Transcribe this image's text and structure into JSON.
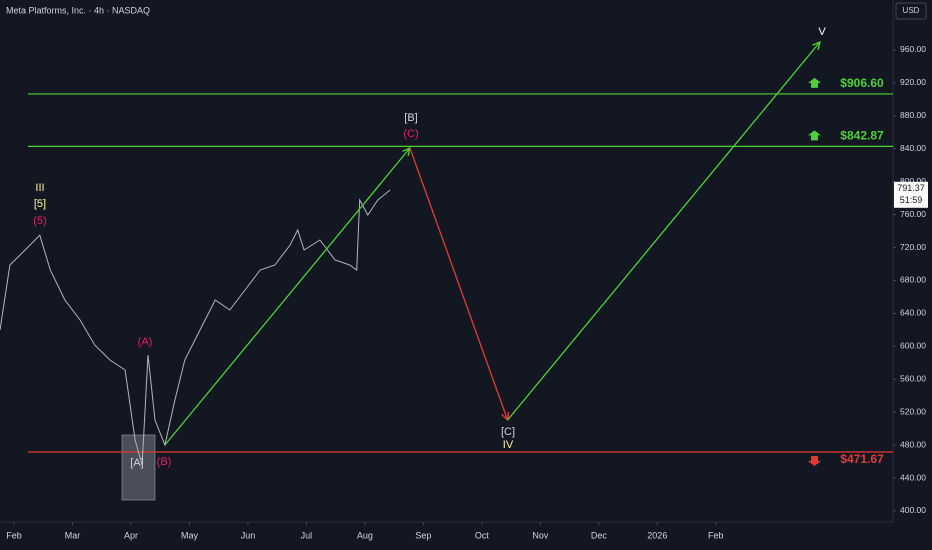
{
  "chart_data": {
    "type": "line",
    "title": "Meta Platforms, Inc. · 4h · NASDAQ",
    "currency": "USD",
    "xlim": [
      1.76,
      17.03
    ],
    "ylim": [
      386.6,
      1020.7
    ],
    "xticks": [
      {
        "value": 2,
        "label": "Feb"
      },
      {
        "value": 3,
        "label": "Mar"
      },
      {
        "value": 4,
        "label": "Apr"
      },
      {
        "value": 5,
        "label": "May"
      },
      {
        "value": 6,
        "label": "Jun"
      },
      {
        "value": 7,
        "label": "Jul"
      },
      {
        "value": 8,
        "label": "Aug"
      },
      {
        "value": 9,
        "label": "Sep"
      },
      {
        "value": 10,
        "label": "Oct"
      },
      {
        "value": 11,
        "label": "Nov"
      },
      {
        "value": 12,
        "label": "Dec"
      },
      {
        "value": 13,
        "label": "2026"
      },
      {
        "value": 14,
        "label": "Feb"
      }
    ],
    "yticks": [
      {
        "value": 400,
        "label": "400.00"
      },
      {
        "value": 440,
        "label": "440.00"
      },
      {
        "value": 480,
        "label": "480.00"
      },
      {
        "value": 520,
        "label": "520.00"
      },
      {
        "value": 560,
        "label": "560.00"
      },
      {
        "value": 600,
        "label": "600.00"
      },
      {
        "value": 640,
        "label": "640.00"
      },
      {
        "value": 680,
        "label": "680.00"
      },
      {
        "value": 720,
        "label": "720.00"
      },
      {
        "value": 760,
        "label": "760.00"
      },
      {
        "value": 800,
        "label": "800.00"
      },
      {
        "value": 840,
        "label": "840.00"
      },
      {
        "value": 880,
        "label": "880.00"
      },
      {
        "value": 920,
        "label": "920.00"
      },
      {
        "value": 960,
        "label": "960.00"
      }
    ],
    "series": [
      {
        "color": "#b2b5be",
        "arrow": false,
        "x": [
          1.76,
          1.93,
          2.19,
          2.44,
          2.62,
          2.87,
          3.13,
          3.38,
          3.64,
          3.9,
          4.07,
          4.19,
          4.29,
          4.41,
          4.58,
          4.75,
          4.92,
          5.18,
          5.44,
          5.69,
          5.95,
          6.21,
          6.46,
          6.72,
          6.85,
          6.96,
          7.23,
          7.49,
          7.74,
          7.86,
          7.91,
          8.05,
          8.22,
          8.43
        ],
        "values": [
          619.8,
          698.8,
          717,
          735,
          692.7,
          656.3,
          632,
          601.6,
          583.4,
          571.2,
          486.2,
          455.8,
          589.4,
          510.5,
          480.1,
          534.8,
          583.4,
          619.8,
          656.3,
          644.1,
          668.4,
          692.7,
          698.8,
          723.1,
          741.3,
          717,
          729.2,
          704.9,
          698.8,
          692.7,
          777.7,
          759.5,
          777.7,
          789.9
        ]
      },
      {
        "color": "#4cd137",
        "arrow": true,
        "x": [
          4.58,
          8.77
        ],
        "values": [
          480.1,
          840.9
        ]
      },
      {
        "color": "#e53935",
        "arrow": true,
        "x": [
          8.77,
          10.44
        ],
        "values": [
          840.9,
          510.5
        ]
      },
      {
        "color": "#4cd137",
        "arrow": true,
        "x": [
          10.44,
          15.78
        ],
        "values": [
          510.5,
          969.7
        ]
      }
    ],
    "levels": [
      {
        "value": 906.6,
        "label": "$906.60",
        "color": "#4cd137",
        "direction": "up"
      },
      {
        "value": 842.87,
        "label": "$842.87",
        "color": "#4cd137",
        "direction": "up"
      },
      {
        "value": 471.67,
        "label": "$471.67",
        "color": "#e53935",
        "direction": "down"
      }
    ],
    "current_price": {
      "value": 791.37,
      "label": "791.37",
      "countdown": "51:59"
    },
    "annotations": [
      {
        "text": "III",
        "color": "#fff59d"
      },
      {
        "text": "[5]",
        "color": "#fff59d"
      },
      {
        "text": "(5)",
        "color": "#e91e63"
      },
      {
        "text": "(A)",
        "color": "#e91e63"
      },
      {
        "text": "[A]",
        "color": "#d1d4dc"
      },
      {
        "text": "(B)",
        "color": "#e91e63"
      },
      {
        "text": "[B]",
        "color": "#d1d4dc"
      },
      {
        "text": "(C)",
        "color": "#e91e63"
      },
      {
        "text": "[C]",
        "color": "#d1d4dc"
      },
      {
        "text": "IV",
        "color": "#fff59d"
      },
      {
        "text": "V",
        "color": "#ffffff"
      }
    ]
  }
}
